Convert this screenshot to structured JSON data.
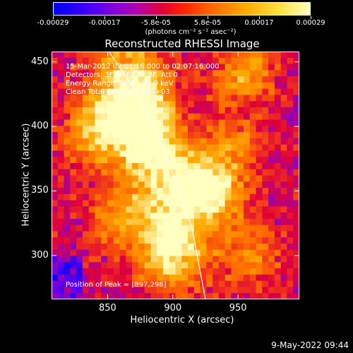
{
  "colorbar": {
    "ticks": [
      "-0.00029",
      "-0.00017",
      "-5.8e-05",
      "5.8e-05",
      "0.00017",
      "0.00029"
    ],
    "unit_label": "(photons cm⁻² s⁻¹ asec⁻²)"
  },
  "title": "Reconstructed RHESSI Image",
  "info": {
    "time": "15-Mar-2012 02:01:16.000 to 02:07:16.000",
    "detectors": "Detectors: 3F 5F 6F 7F 8F, Att 0",
    "energy": "Energy Range: 25.0 - 50.0 keV",
    "clean": "Clean    Total counts: 4.63E+03",
    "peak": "Position of Peak = [897,298]"
  },
  "footer": "9-May-2022 09:44",
  "chart_data": {
    "type": "heatmap",
    "title": "Reconstructed RHESSI Image",
    "xlabel": "Heliocentric X (arcsec)",
    "ylabel": "Heliocentric Y (arcsec)",
    "xlim": [
      807,
      997
    ],
    "ylim": [
      266,
      458
    ],
    "xticks": [
      850,
      900,
      950
    ],
    "yticks": [
      300,
      350,
      400,
      450
    ],
    "colorbar_range": [
      -0.00029,
      0.00029
    ],
    "colormap": [
      "#0000ff",
      "#7a00e0",
      "#e0003a",
      "#ff6a00",
      "#ffaa00",
      "#ffffc0"
    ],
    "limb_curve": [
      [
        851,
        458
      ],
      [
        870,
        430
      ],
      [
        890,
        390
      ],
      [
        905,
        350
      ],
      [
        915,
        320
      ],
      [
        925,
        266
      ]
    ],
    "hot_spots": [
      {
        "x": 877,
        "y": 412,
        "intensity": 1.0
      },
      {
        "x": 880,
        "y": 380,
        "intensity": 0.9
      },
      {
        "x": 915,
        "y": 360,
        "intensity": 0.85
      },
      {
        "x": 935,
        "y": 345,
        "intensity": 0.8
      },
      {
        "x": 897,
        "y": 298,
        "intensity": 1.0
      },
      {
        "x": 862,
        "y": 330,
        "intensity": 0.7
      },
      {
        "x": 850,
        "y": 410,
        "intensity": 0.65
      },
      {
        "x": 955,
        "y": 440,
        "intensity": 0.7
      },
      {
        "x": 840,
        "y": 390,
        "intensity": 0.6
      },
      {
        "x": 870,
        "y": 440,
        "intensity": 0.55
      },
      {
        "x": 945,
        "y": 385,
        "intensity": 0.55
      },
      {
        "x": 960,
        "y": 300,
        "intensity": 0.5
      },
      {
        "x": 900,
        "y": 330,
        "intensity": 0.6
      }
    ],
    "peak": [
      897,
      298
    ]
  }
}
